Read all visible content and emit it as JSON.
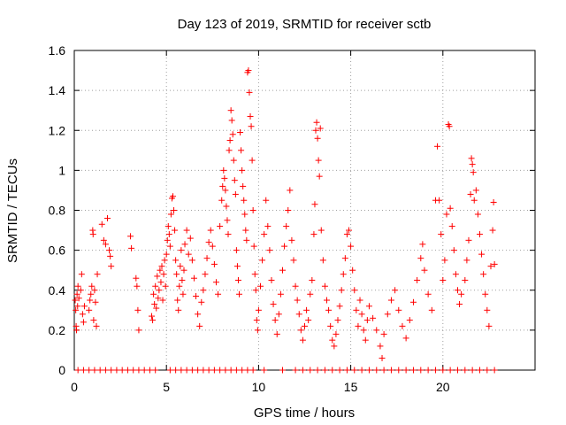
{
  "chart_data": {
    "type": "scatter",
    "title": "Day 123 of 2019, SRMTID for receiver sctb",
    "xlabel": "GPS time / hours",
    "ylabel": "SRMTID / TECUs",
    "xlim": [
      0,
      25
    ],
    "ylim": [
      0,
      1.6
    ],
    "x_ticks": [
      0,
      5,
      10,
      15,
      20
    ],
    "x_tick_labels": [
      "0",
      "5",
      "10",
      "15",
      "20"
    ],
    "y_ticks": [
      0,
      0.2,
      0.4,
      0.6,
      0.8,
      1,
      1.2,
      1.4,
      1.6
    ],
    "y_tick_labels": [
      "0",
      "0.2",
      "0.4",
      "0.6",
      "0.8",
      "1",
      "1.2",
      "1.4",
      "1.6"
    ],
    "grid": true,
    "marker": "+",
    "marker_color": "#ff0000",
    "series": [
      {
        "name": "SRMTID",
        "points": [
          [
            0.05,
            0.35
          ],
          [
            0.08,
            0.3
          ],
          [
            0.1,
            0.22
          ],
          [
            0.12,
            0.2
          ],
          [
            0.15,
            0.38
          ],
          [
            0.18,
            0.32
          ],
          [
            0.2,
            0.42
          ],
          [
            0.25,
            0.36
          ],
          [
            0.35,
            0.4
          ],
          [
            0.4,
            0.48
          ],
          [
            0.45,
            0.28
          ],
          [
            0.5,
            0.24
          ],
          [
            0.55,
            0.32
          ],
          [
            0.8,
            0.3
          ],
          [
            0.85,
            0.35
          ],
          [
            0.9,
            0.38
          ],
          [
            0.95,
            0.42
          ],
          [
            1.0,
            0.7
          ],
          [
            1.02,
            0.68
          ],
          [
            1.05,
            0.25
          ],
          [
            1.1,
            0.4
          ],
          [
            1.15,
            0.34
          ],
          [
            1.2,
            0.22
          ],
          [
            1.25,
            0.48
          ],
          [
            1.5,
            0.73
          ],
          [
            1.6,
            0.65
          ],
          [
            1.7,
            0.63
          ],
          [
            1.8,
            0.76
          ],
          [
            1.9,
            0.6
          ],
          [
            1.95,
            0.57
          ],
          [
            2.0,
            0.52
          ],
          [
            3.05,
            0.67
          ],
          [
            3.1,
            0.61
          ],
          [
            3.35,
            0.46
          ],
          [
            3.4,
            0.42
          ],
          [
            3.45,
            0.3
          ],
          [
            3.5,
            0.2
          ],
          [
            4.2,
            0.27
          ],
          [
            4.25,
            0.25
          ],
          [
            4.3,
            0.38
          ],
          [
            4.35,
            0.33
          ],
          [
            4.4,
            0.42
          ],
          [
            4.45,
            0.31
          ],
          [
            4.5,
            0.47
          ],
          [
            4.55,
            0.36
          ],
          [
            4.6,
            0.4
          ],
          [
            4.65,
            0.5
          ],
          [
            4.7,
            0.44
          ],
          [
            4.75,
            0.52
          ],
          [
            4.8,
            0.35
          ],
          [
            4.85,
            0.48
          ],
          [
            4.9,
            0.55
          ],
          [
            4.95,
            0.42
          ],
          [
            5.0,
            0.58
          ],
          [
            5.05,
            0.65
          ],
          [
            5.1,
            0.72
          ],
          [
            5.15,
            0.68
          ],
          [
            5.2,
            0.62
          ],
          [
            5.25,
            0.78
          ],
          [
            5.3,
            0.86
          ],
          [
            5.35,
            0.87
          ],
          [
            5.4,
            0.8
          ],
          [
            5.45,
            0.7
          ],
          [
            5.5,
            0.55
          ],
          [
            5.55,
            0.48
          ],
          [
            5.6,
            0.35
          ],
          [
            5.65,
            0.3
          ],
          [
            5.7,
            0.42
          ],
          [
            5.75,
            0.52
          ],
          [
            5.8,
            0.6
          ],
          [
            5.85,
            0.45
          ],
          [
            5.9,
            0.38
          ],
          [
            5.95,
            0.5
          ],
          [
            6.0,
            0.63
          ],
          [
            6.1,
            0.7
          ],
          [
            6.2,
            0.58
          ],
          [
            6.3,
            0.66
          ],
          [
            6.4,
            0.55
          ],
          [
            6.5,
            0.46
          ],
          [
            6.6,
            0.37
          ],
          [
            6.7,
            0.28
          ],
          [
            6.8,
            0.22
          ],
          [
            6.9,
            0.34
          ],
          [
            7.0,
            0.4
          ],
          [
            7.1,
            0.48
          ],
          [
            7.2,
            0.56
          ],
          [
            7.3,
            0.64
          ],
          [
            7.4,
            0.7
          ],
          [
            7.5,
            0.62
          ],
          [
            7.6,
            0.53
          ],
          [
            7.7,
            0.44
          ],
          [
            7.8,
            0.38
          ],
          [
            7.9,
            0.72
          ],
          [
            8.0,
            0.85
          ],
          [
            8.05,
            0.92
          ],
          [
            8.1,
            1.0
          ],
          [
            8.15,
            0.96
          ],
          [
            8.2,
            0.9
          ],
          [
            8.25,
            0.82
          ],
          [
            8.3,
            0.75
          ],
          [
            8.35,
            0.68
          ],
          [
            8.4,
            1.1
          ],
          [
            8.45,
            1.15
          ],
          [
            8.5,
            1.3
          ],
          [
            8.55,
            1.25
          ],
          [
            8.6,
            1.18
          ],
          [
            8.65,
            1.05
          ],
          [
            8.7,
            0.95
          ],
          [
            8.75,
            0.88
          ],
          [
            8.8,
            0.6
          ],
          [
            8.85,
            0.52
          ],
          [
            8.9,
            0.45
          ],
          [
            8.95,
            0.38
          ],
          [
            9.0,
            1.19
          ],
          [
            9.05,
            1.1
          ],
          [
            9.1,
            1.0
          ],
          [
            9.15,
            0.92
          ],
          [
            9.2,
            0.85
          ],
          [
            9.25,
            0.78
          ],
          [
            9.3,
            0.7
          ],
          [
            9.35,
            0.65
          ],
          [
            9.4,
            1.49
          ],
          [
            9.45,
            1.5
          ],
          [
            9.5,
            1.39
          ],
          [
            9.55,
            1.27
          ],
          [
            9.6,
            1.22
          ],
          [
            9.65,
            1.05
          ],
          [
            9.7,
            0.8
          ],
          [
            9.75,
            0.62
          ],
          [
            9.8,
            0.48
          ],
          [
            9.85,
            0.4
          ],
          [
            9.9,
            0.25
          ],
          [
            9.95,
            0.2
          ],
          [
            10.0,
            0.3
          ],
          [
            10.1,
            0.42
          ],
          [
            10.2,
            0.55
          ],
          [
            10.3,
            0.68
          ],
          [
            10.4,
            0.85
          ],
          [
            10.5,
            0.72
          ],
          [
            10.6,
            0.6
          ],
          [
            10.7,
            0.45
          ],
          [
            10.8,
            0.33
          ],
          [
            10.9,
            0.25
          ],
          [
            11.0,
            0.18
          ],
          [
            11.1,
            0.28
          ],
          [
            11.2,
            0.38
          ],
          [
            11.3,
            0.5
          ],
          [
            11.4,
            0.62
          ],
          [
            11.5,
            0.72
          ],
          [
            11.6,
            0.8
          ],
          [
            11.7,
            0.9
          ],
          [
            11.8,
            0.65
          ],
          [
            11.9,
            0.55
          ],
          [
            12.0,
            0.42
          ],
          [
            12.1,
            0.35
          ],
          [
            12.2,
            0.28
          ],
          [
            12.3,
            0.2
          ],
          [
            12.4,
            0.15
          ],
          [
            12.5,
            0.22
          ],
          [
            12.6,
            0.3
          ],
          [
            12.7,
            0.25
          ],
          [
            12.8,
            0.38
          ],
          [
            12.9,
            0.45
          ],
          [
            13.0,
            0.68
          ],
          [
            13.05,
            0.83
          ],
          [
            13.1,
            1.2
          ],
          [
            13.15,
            1.24
          ],
          [
            13.2,
            1.16
          ],
          [
            13.25,
            1.05
          ],
          [
            13.3,
            0.97
          ],
          [
            13.35,
            1.21
          ],
          [
            13.4,
            0.7
          ],
          [
            13.5,
            0.55
          ],
          [
            13.6,
            0.42
          ],
          [
            13.7,
            0.35
          ],
          [
            13.8,
            0.3
          ],
          [
            13.9,
            0.22
          ],
          [
            14.0,
            0.15
          ],
          [
            14.1,
            0.12
          ],
          [
            14.2,
            0.18
          ],
          [
            14.3,
            0.25
          ],
          [
            14.4,
            0.32
          ],
          [
            14.5,
            0.4
          ],
          [
            14.6,
            0.48
          ],
          [
            14.7,
            0.56
          ],
          [
            14.8,
            0.68
          ],
          [
            14.9,
            0.7
          ],
          [
            15.0,
            0.62
          ],
          [
            15.1,
            0.5
          ],
          [
            15.2,
            0.4
          ],
          [
            15.3,
            0.3
          ],
          [
            15.4,
            0.22
          ],
          [
            15.5,
            0.35
          ],
          [
            15.6,
            0.28
          ],
          [
            15.7,
            0.2
          ],
          [
            15.8,
            0.15
          ],
          [
            15.9,
            0.25
          ],
          [
            16.0,
            0.32
          ],
          [
            16.2,
            0.26
          ],
          [
            16.4,
            0.2
          ],
          [
            16.6,
            0.12
          ],
          [
            16.7,
            0.06
          ],
          [
            16.8,
            0.18
          ],
          [
            17.0,
            0.28
          ],
          [
            17.2,
            0.35
          ],
          [
            17.4,
            0.4
          ],
          [
            17.6,
            0.3
          ],
          [
            17.8,
            0.22
          ],
          [
            18.0,
            0.16
          ],
          [
            18.2,
            0.25
          ],
          [
            18.4,
            0.34
          ],
          [
            18.6,
            0.45
          ],
          [
            18.8,
            0.56
          ],
          [
            18.9,
            0.63
          ],
          [
            19.0,
            0.5
          ],
          [
            19.2,
            0.38
          ],
          [
            19.4,
            0.3
          ],
          [
            19.6,
            0.85
          ],
          [
            19.7,
            1.12
          ],
          [
            19.8,
            0.85
          ],
          [
            19.9,
            0.68
          ],
          [
            20.0,
            0.45
          ],
          [
            20.1,
            0.55
          ],
          [
            20.2,
            0.78
          ],
          [
            20.3,
            1.23
          ],
          [
            20.35,
            1.22
          ],
          [
            20.4,
            0.81
          ],
          [
            20.5,
            0.72
          ],
          [
            20.6,
            0.6
          ],
          [
            20.7,
            0.48
          ],
          [
            20.8,
            0.4
          ],
          [
            20.9,
            0.33
          ],
          [
            21.0,
            0.38
          ],
          [
            21.2,
            0.45
          ],
          [
            21.3,
            0.55
          ],
          [
            21.4,
            0.65
          ],
          [
            21.5,
            0.88
          ],
          [
            21.55,
            1.06
          ],
          [
            21.6,
            1.03
          ],
          [
            21.65,
            0.99
          ],
          [
            21.7,
            0.85
          ],
          [
            21.8,
            0.9
          ],
          [
            21.9,
            0.78
          ],
          [
            22.0,
            0.68
          ],
          [
            22.1,
            0.58
          ],
          [
            22.2,
            0.48
          ],
          [
            22.3,
            0.38
          ],
          [
            22.4,
            0.3
          ],
          [
            22.5,
            0.22
          ],
          [
            22.6,
            0.52
          ],
          [
            22.7,
            0.7
          ],
          [
            22.75,
            0.84
          ],
          [
            22.8,
            0.53
          ],
          [
            0.2,
            0
          ],
          [
            0.5,
            0
          ],
          [
            0.8,
            0
          ],
          [
            1.1,
            0
          ],
          [
            1.4,
            0
          ],
          [
            1.7,
            0
          ],
          [
            2.0,
            0
          ],
          [
            2.3,
            0
          ],
          [
            2.6,
            0
          ],
          [
            2.9,
            0
          ],
          [
            3.2,
            0
          ],
          [
            3.5,
            0
          ],
          [
            3.8,
            0
          ],
          [
            4.1,
            0
          ],
          [
            4.4,
            0
          ],
          [
            5.2,
            0
          ],
          [
            5.5,
            0
          ],
          [
            5.8,
            0
          ],
          [
            6.1,
            0
          ],
          [
            6.4,
            0
          ],
          [
            6.7,
            0
          ],
          [
            7.0,
            0
          ],
          [
            7.3,
            0
          ],
          [
            7.6,
            0
          ],
          [
            7.9,
            0
          ],
          [
            8.2,
            0
          ],
          [
            8.5,
            0
          ],
          [
            8.8,
            0
          ],
          [
            9.1,
            0
          ],
          [
            9.4,
            0
          ],
          [
            9.7,
            0
          ],
          [
            10.3,
            0
          ],
          [
            11.3,
            0
          ],
          [
            12.0,
            0
          ],
          [
            12.4,
            0
          ],
          [
            12.8,
            0
          ],
          [
            13.2,
            0
          ],
          [
            13.6,
            0
          ],
          [
            14.0,
            0
          ],
          [
            14.4,
            0
          ],
          [
            14.8,
            0
          ],
          [
            15.2,
            0
          ],
          [
            15.6,
            0
          ],
          [
            16.0,
            0
          ],
          [
            16.4,
            0
          ],
          [
            16.8,
            0
          ],
          [
            17.2,
            0
          ],
          [
            17.6,
            0
          ],
          [
            18.0,
            0
          ],
          [
            18.4,
            0
          ],
          [
            18.8,
            0
          ],
          [
            19.2,
            0
          ],
          [
            19.6,
            0
          ],
          [
            20.0,
            0
          ],
          [
            20.4,
            0
          ],
          [
            20.8,
            0
          ],
          [
            21.2,
            0
          ],
          [
            21.6,
            0
          ],
          [
            22.0,
            0
          ],
          [
            22.4,
            0
          ],
          [
            22.8,
            0
          ]
        ]
      }
    ]
  }
}
